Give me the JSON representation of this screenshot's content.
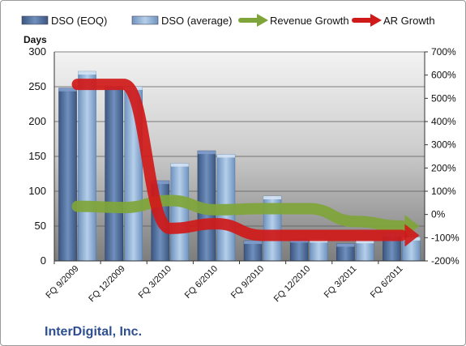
{
  "company": "InterDigital, Inc.",
  "colors": {
    "eoq_bar": "#4f6c99",
    "avg_bar": "#8fb1d6",
    "revenue": "#7fa53a",
    "ar": "#d01919",
    "plot_bg_top": "#f3f3f3",
    "plot_bg_bottom": "#7d7d7d"
  },
  "chart_data": {
    "type": "bar",
    "categories": [
      "FQ 9/2009",
      "FQ 12/2009",
      "FQ 3/2010",
      "FQ 6/2010",
      "FQ 9/2010",
      "FQ 12/2010",
      "FQ 3/2011",
      "FQ 6/2011"
    ],
    "series": [
      {
        "name": "DSO (EOQ)",
        "type": "bar",
        "axis": "left",
        "values": [
          248,
          250,
          115,
          158,
          29,
          31,
          25,
          40
        ]
      },
      {
        "name": "DSO (average)",
        "type": "bar",
        "axis": "left",
        "values": [
          272,
          250,
          140,
          153,
          93,
          31,
          30,
          34
        ]
      },
      {
        "name": "Revenue Growth",
        "type": "line",
        "axis": "right",
        "values": [
          35,
          30,
          60,
          20,
          25,
          25,
          -30,
          -50
        ]
      },
      {
        "name": "AR Growth",
        "type": "line",
        "axis": "right",
        "values": [
          560,
          560,
          -60,
          -40,
          -90,
          -90,
          -90,
          -90
        ]
      }
    ],
    "ylabel": "Days",
    "ylim": [
      0,
      300
    ],
    "yticks": [
      "0",
      "50",
      "100",
      "150",
      "200",
      "250",
      "300"
    ],
    "y2lim": [
      -200,
      700
    ],
    "y2ticks": [
      "-200%",
      "-100%",
      "0%",
      "100%",
      "200%",
      "300%",
      "400%",
      "500%",
      "600%",
      "700%"
    ],
    "legend_position": "top",
    "grid": true
  }
}
